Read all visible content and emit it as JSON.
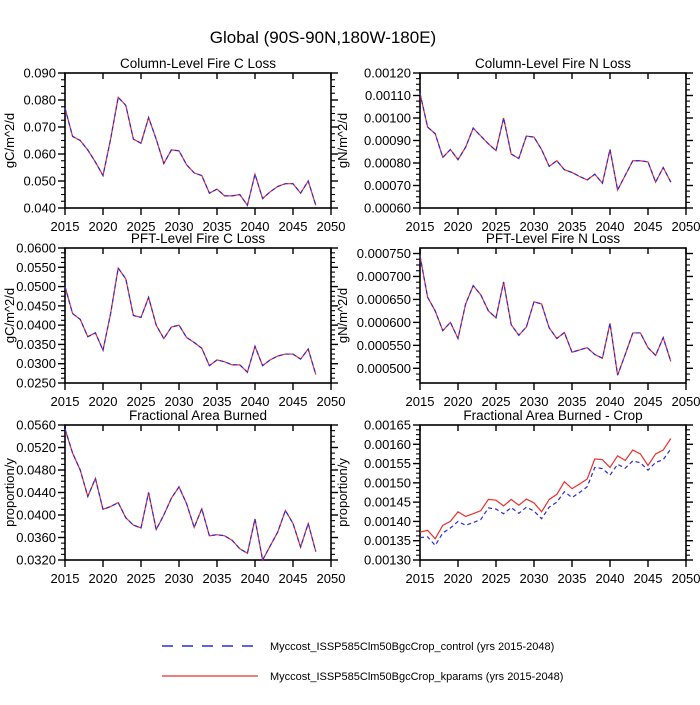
{
  "title": "Global (90S-90N,180W-180E)",
  "legend": {
    "items": [
      {
        "label": "Myccost_ISSP585Clm50BgcCrop_control (yrs 2015-2048)",
        "color": "#2b2bd6",
        "style": "dashed"
      },
      {
        "label": "Myccost_ISSP585Clm50BgcCrop_kparams (yrs 2015-2048)",
        "color": "#e83030",
        "style": "solid"
      }
    ]
  },
  "chart_data": {
    "type": "line",
    "x_years": [
      2015,
      2016,
      2017,
      2018,
      2019,
      2020,
      2021,
      2022,
      2023,
      2024,
      2025,
      2026,
      2027,
      2028,
      2029,
      2030,
      2031,
      2032,
      2033,
      2034,
      2035,
      2036,
      2037,
      2038,
      2039,
      2040,
      2041,
      2042,
      2043,
      2044,
      2045,
      2046,
      2047,
      2048
    ],
    "xlim": [
      2015,
      2050
    ],
    "xticks": [
      2015,
      2020,
      2025,
      2030,
      2035,
      2040,
      2045,
      2050
    ],
    "series_names": [
      "control",
      "kparams"
    ],
    "subplots": [
      {
        "title": "Column-Level Fire C Loss",
        "ylabel": "gC/m^2/d",
        "ylim": [
          0.04,
          0.09
        ],
        "ytick_labels": [
          "0.040",
          "0.050",
          "0.060",
          "0.070",
          "0.080",
          "0.090"
        ],
        "ytick_values": [
          0.04,
          0.05,
          0.06,
          0.07,
          0.08,
          0.09
        ],
        "series": {
          "control": [
            0.077,
            0.0665,
            0.065,
            0.0615,
            0.057,
            0.052,
            0.0655,
            0.081,
            0.078,
            0.0655,
            0.064,
            0.0735,
            0.0655,
            0.0565,
            0.0615,
            0.0612,
            0.056,
            0.053,
            0.052,
            0.0455,
            0.047,
            0.0445,
            0.0445,
            0.045,
            0.041,
            0.0525,
            0.0435,
            0.046,
            0.048,
            0.049,
            0.049,
            0.0455,
            0.05,
            0.041
          ],
          "kparams": [
            0.077,
            0.0665,
            0.065,
            0.0615,
            0.057,
            0.052,
            0.0655,
            0.081,
            0.078,
            0.0655,
            0.064,
            0.0735,
            0.0655,
            0.0565,
            0.0615,
            0.0612,
            0.056,
            0.053,
            0.052,
            0.0455,
            0.047,
            0.0445,
            0.0445,
            0.045,
            0.041,
            0.0525,
            0.0435,
            0.046,
            0.048,
            0.049,
            0.049,
            0.0455,
            0.05,
            0.041
          ]
        }
      },
      {
        "title": "Column-Level Fire N Loss",
        "ylabel": "gN/m^2/d",
        "ylim": [
          0.0006,
          0.0012
        ],
        "ytick_labels": [
          "0.00060",
          "0.00070",
          "0.00080",
          "0.00090",
          "0.00100",
          "0.00110",
          "0.00120"
        ],
        "ytick_values": [
          0.0006,
          0.0007,
          0.0008,
          0.0009,
          0.001,
          0.0011,
          0.0012
        ],
        "series": {
          "control": [
            0.00111,
            0.00096,
            0.00093,
            0.000825,
            0.00086,
            0.000815,
            0.00087,
            0.000955,
            0.00092,
            0.000885,
            0.000855,
            0.001,
            0.00084,
            0.00082,
            0.00092,
            0.000915,
            0.00086,
            0.000785,
            0.00081,
            0.00077,
            0.000758,
            0.00074,
            0.000725,
            0.00075,
            0.00071,
            0.00086,
            0.00068,
            0.000745,
            0.00081,
            0.00081,
            0.000805,
            0.000715,
            0.00078,
            0.000715
          ],
          "kparams": [
            0.00111,
            0.00096,
            0.00093,
            0.000825,
            0.00086,
            0.000815,
            0.00087,
            0.000955,
            0.00092,
            0.000885,
            0.000855,
            0.001,
            0.00084,
            0.00082,
            0.00092,
            0.000915,
            0.00086,
            0.000785,
            0.00081,
            0.00077,
            0.000758,
            0.00074,
            0.000725,
            0.00075,
            0.00071,
            0.00086,
            0.00068,
            0.000745,
            0.00081,
            0.00081,
            0.000805,
            0.000715,
            0.00078,
            0.000715
          ]
        }
      },
      {
        "title": "PFT-Level Fire C Loss",
        "ylabel": "gC/m^2/d",
        "ylim": [
          0.025,
          0.06
        ],
        "ytick_labels": [
          "0.0250",
          "0.0300",
          "0.0350",
          "0.0400",
          "0.0450",
          "0.0500",
          "0.0550",
          "0.0600"
        ],
        "ytick_values": [
          0.025,
          0.03,
          0.035,
          0.04,
          0.045,
          0.05,
          0.055,
          0.06
        ],
        "series": {
          "control": [
            0.05,
            0.043,
            0.0415,
            0.037,
            0.038,
            0.0335,
            0.043,
            0.0548,
            0.052,
            0.0425,
            0.042,
            0.0472,
            0.04,
            0.0365,
            0.0395,
            0.04,
            0.0368,
            0.0355,
            0.034,
            0.0295,
            0.031,
            0.0305,
            0.0297,
            0.0297,
            0.0278,
            0.0345,
            0.0295,
            0.031,
            0.032,
            0.0325,
            0.0325,
            0.0312,
            0.0338,
            0.0272
          ],
          "kparams": [
            0.05,
            0.043,
            0.0415,
            0.037,
            0.038,
            0.0335,
            0.043,
            0.0548,
            0.052,
            0.0425,
            0.042,
            0.0472,
            0.04,
            0.0365,
            0.0395,
            0.04,
            0.0368,
            0.0355,
            0.034,
            0.0295,
            0.031,
            0.0305,
            0.0297,
            0.0297,
            0.0278,
            0.0345,
            0.0295,
            0.031,
            0.032,
            0.0325,
            0.0325,
            0.0312,
            0.0338,
            0.0272
          ]
        }
      },
      {
        "title": "PFT-Level Fire N Loss",
        "ylabel": "gN/m^2/d",
        "ylim": [
          0.000468,
          0.000762
        ],
        "ytick_labels": [
          "0.000500",
          "0.000550",
          "0.000600",
          "0.000650",
          "0.000700",
          "0.000750"
        ],
        "ytick_values": [
          0.0005,
          0.00055,
          0.0006,
          0.00065,
          0.0007,
          0.00075
        ],
        "series": {
          "control": [
            0.000745,
            0.000655,
            0.000625,
            0.000582,
            0.0006,
            0.000565,
            0.00064,
            0.00068,
            0.00066,
            0.000625,
            0.00061,
            0.000688,
            0.000595,
            0.000572,
            0.00059,
            0.000645,
            0.00064,
            0.000588,
            0.000565,
            0.000578,
            0.000535,
            0.00054,
            0.000545,
            0.00053,
            0.000522,
            0.000598,
            0.000485,
            0.00053,
            0.000577,
            0.000577,
            0.000545,
            0.000528,
            0.000567,
            0.000515
          ],
          "kparams": [
            0.000745,
            0.000655,
            0.000625,
            0.000582,
            0.0006,
            0.000565,
            0.00064,
            0.00068,
            0.00066,
            0.000625,
            0.00061,
            0.000688,
            0.000595,
            0.000572,
            0.00059,
            0.000645,
            0.00064,
            0.000588,
            0.000565,
            0.000578,
            0.000535,
            0.00054,
            0.000545,
            0.00053,
            0.000522,
            0.000598,
            0.000485,
            0.00053,
            0.000577,
            0.000577,
            0.000545,
            0.000528,
            0.000567,
            0.000515
          ]
        }
      },
      {
        "title": "Fractional Area Burned",
        "ylabel": "proportion/y",
        "ylim": [
          0.032,
          0.056
        ],
        "ytick_labels": [
          "0.0320",
          "0.0360",
          "0.0400",
          "0.0440",
          "0.0480",
          "0.0520",
          "0.0560"
        ],
        "ytick_values": [
          0.032,
          0.036,
          0.04,
          0.044,
          0.048,
          0.052,
          0.056
        ],
        "series": {
          "control": [
            0.0553,
            0.051,
            0.048,
            0.0433,
            0.0465,
            0.041,
            0.0415,
            0.0422,
            0.0395,
            0.0382,
            0.0377,
            0.044,
            0.0374,
            0.04,
            0.043,
            0.045,
            0.042,
            0.0378,
            0.0411,
            0.0363,
            0.0365,
            0.0363,
            0.0355,
            0.034,
            0.0332,
            0.0393,
            0.032,
            0.0345,
            0.037,
            0.0408,
            0.0385,
            0.0343,
            0.0385,
            0.0335
          ],
          "kparams": [
            0.0553,
            0.051,
            0.048,
            0.0433,
            0.0465,
            0.041,
            0.0415,
            0.0422,
            0.0395,
            0.0382,
            0.0377,
            0.044,
            0.0374,
            0.04,
            0.043,
            0.045,
            0.042,
            0.0378,
            0.0411,
            0.0363,
            0.0365,
            0.0363,
            0.0355,
            0.034,
            0.0332,
            0.0393,
            0.032,
            0.0345,
            0.037,
            0.0408,
            0.0385,
            0.0343,
            0.0385,
            0.0335
          ]
        }
      },
      {
        "title": "Fractional Area Burned - Crop",
        "ylabel": "proportion/y",
        "ylim": [
          0.0013,
          0.00165
        ],
        "ytick_labels": [
          "0.00130",
          "0.00135",
          "0.00140",
          "0.00145",
          "0.00150",
          "0.00155",
          "0.00160",
          "0.00165"
        ],
        "ytick_values": [
          0.0013,
          0.00135,
          0.0014,
          0.00145,
          0.0015,
          0.00155,
          0.0016,
          0.00165
        ],
        "series": {
          "control": [
            0.001358,
            0.00136,
            0.001338,
            0.00137,
            0.001383,
            0.0014,
            0.00139,
            0.001397,
            0.001405,
            0.001435,
            0.001432,
            0.00142,
            0.001436,
            0.001421,
            0.001437,
            0.001427,
            0.001407,
            0.001437,
            0.00145,
            0.001477,
            0.001462,
            0.001475,
            0.00149,
            0.00154,
            0.001537,
            0.00152,
            0.001548,
            0.001538,
            0.001557,
            0.001552,
            0.001533,
            0.001553,
            0.00156,
            0.001588
          ],
          "kparams": [
            0.001372,
            0.001377,
            0.001355,
            0.00139,
            0.0014,
            0.001425,
            0.001413,
            0.00142,
            0.001428,
            0.001457,
            0.001455,
            0.00144,
            0.001457,
            0.001442,
            0.001458,
            0.001448,
            0.001425,
            0.001457,
            0.00147,
            0.001503,
            0.001485,
            0.001497,
            0.00151,
            0.001562,
            0.00156,
            0.00154,
            0.00157,
            0.001558,
            0.001585,
            0.001575,
            0.001545,
            0.001575,
            0.001585,
            0.001615
          ]
        }
      }
    ]
  }
}
